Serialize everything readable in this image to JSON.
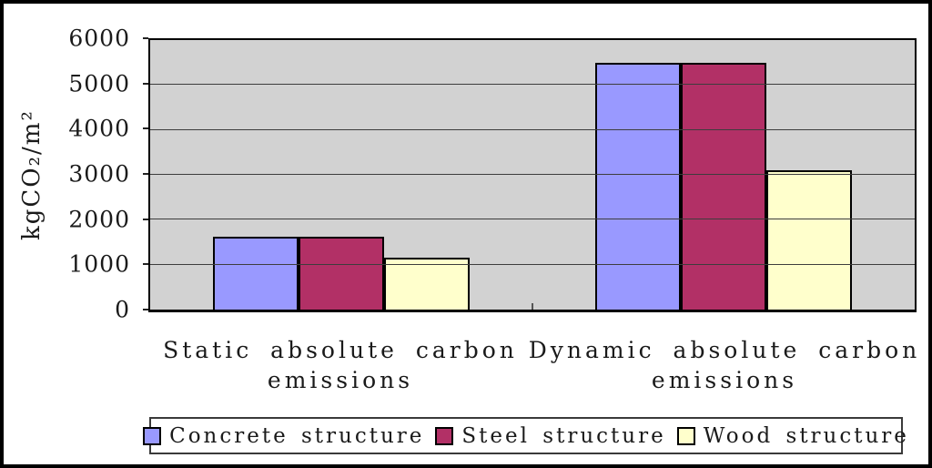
{
  "chart_data": {
    "type": "bar",
    "title": "",
    "ylabel": "kgCO₂/m²",
    "xlabel": "",
    "ylim": [
      0,
      6000
    ],
    "y_ticks": [
      0,
      1000,
      2000,
      3000,
      4000,
      5000,
      6000
    ],
    "grid": true,
    "legend_position": "bottom",
    "plot_bg": "#D2D2D2",
    "gridline_color": "#3d3d3d",
    "categories": [
      "Static absolute carbon\nemissions",
      "Dynamic absolute carbon\nemissions"
    ],
    "series": [
      {
        "name": "Concrete structure",
        "color": "#9999FF",
        "values": [
          1630,
          5500
        ]
      },
      {
        "name": "Steel structure",
        "color": "#B23066",
        "values": [
          1630,
          5500
        ]
      },
      {
        "name": "Wood structure",
        "color": "#FFFFCC",
        "values": [
          1150,
          3100
        ]
      }
    ]
  }
}
